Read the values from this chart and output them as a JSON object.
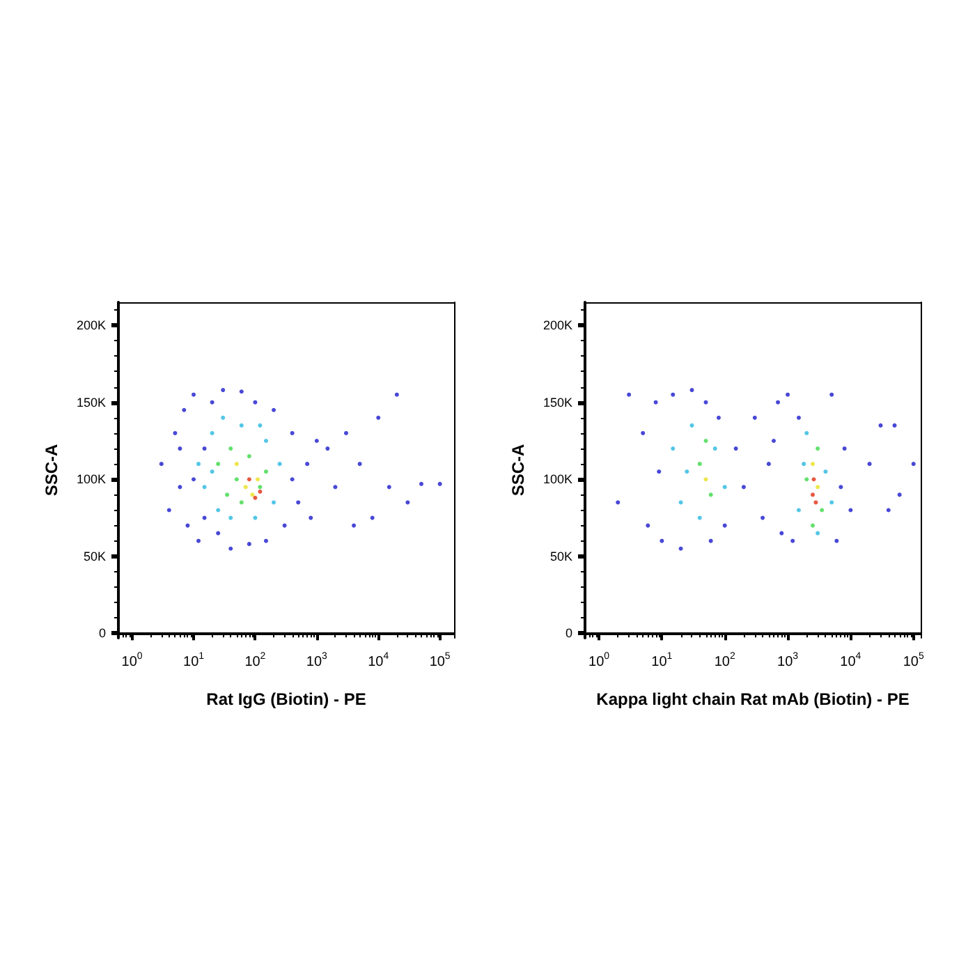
{
  "chart_data": [
    {
      "type": "scatter",
      "xlabel": "Rat IgG (Biotin) - PE",
      "ylabel": "SSC-A",
      "log": "x",
      "grid": false,
      "marker": "circle",
      "xlim": [
        0.6,
        170000
      ],
      "ylim": [
        -3000,
        215000
      ],
      "xticks": [
        {
          "value": 1,
          "label": "10$^{0}$"
        },
        {
          "value": 10,
          "label": "10$^{1}$"
        },
        {
          "value": 100,
          "label": "10$^{2}$"
        },
        {
          "value": 1000,
          "label": "10$^{3}$"
        },
        {
          "value": 10000,
          "label": "10$^{4}$"
        },
        {
          "value": 100000,
          "label": "10$^{5}$"
        }
      ],
      "yticks": [
        0,
        {
          "value": 50000,
          "label": "50K"
        },
        {
          "value": 100000,
          "label": "100K"
        },
        {
          "value": 150000,
          "label": "150K"
        },
        {
          "value": 200000,
          "label": "200K"
        }
      ],
      "x": [
        3,
        4,
        5,
        6,
        7,
        8,
        10,
        12,
        15,
        20,
        25,
        30,
        40,
        60,
        80,
        100,
        150,
        200,
        300,
        400,
        500,
        700,
        800,
        1000,
        10,
        6,
        15,
        400,
        12,
        15,
        20,
        25,
        30,
        40,
        60,
        100,
        150,
        200,
        250,
        20,
        120,
        25,
        35,
        40,
        60,
        80,
        120,
        150,
        50,
        50,
        90,
        110,
        70,
        80,
        100,
        120,
        2000,
        3000,
        5000,
        8000,
        10000,
        15000,
        20000,
        30000,
        50000,
        100000,
        4000,
        1500
      ],
      "values": [
        110000,
        80000,
        130000,
        95000,
        145000,
        70000,
        155000,
        60000,
        120000,
        150000,
        65000,
        158000,
        55000,
        157000,
        58000,
        150000,
        60000,
        145000,
        70000,
        130000,
        85000,
        110000,
        75000,
        125000,
        100000,
        120000,
        75000,
        100000,
        110000,
        95000,
        130000,
        80000,
        140000,
        75000,
        135000,
        75000,
        125000,
        85000,
        110000,
        105000,
        135000,
        110000,
        90000,
        120000,
        85000,
        115000,
        95000,
        105000,
        100000,
        110000,
        90000,
        100000,
        95000,
        100000,
        88000,
        92000,
        95000,
        130000,
        110000,
        75000,
        140000,
        95000,
        155000,
        85000,
        97000,
        97000,
        70000,
        120000
      ],
      "colors": [
        "#1a1acc",
        "#1a1acc",
        "#1a1acc",
        "#1a1acc",
        "#1a1acc",
        "#1a1acc",
        "#1a1acc",
        "#1a1acc",
        "#1a1acc",
        "#1a1acc",
        "#1a1acc",
        "#1a1acc",
        "#1a1acc",
        "#1a1acc",
        "#1a1acc",
        "#1a1acc",
        "#1a1acc",
        "#1a1acc",
        "#1a1acc",
        "#1a1acc",
        "#1a1acc",
        "#1a1acc",
        "#1a1acc",
        "#1a1acc",
        "#1a1acc",
        "#1a1acc",
        "#1a1acc",
        "#1a1acc",
        "#28b8e0",
        "#28b8e0",
        "#28b8e0",
        "#28b8e0",
        "#28b8e0",
        "#28b8e0",
        "#28b8e0",
        "#28b8e0",
        "#28b8e0",
        "#28b8e0",
        "#28b8e0",
        "#28b8e0",
        "#28b8e0",
        "#3cd848",
        "#3cd848",
        "#3cd848",
        "#3cd848",
        "#3cd848",
        "#3cd848",
        "#3cd848",
        "#3cd848",
        "#e8e020",
        "#e8e020",
        "#e8e020",
        "#e8e020",
        "#e03010",
        "#e03010",
        "#e03010",
        "#1a1acc",
        "#1a1acc",
        "#1a1acc",
        "#1a1acc",
        "#1a1acc",
        "#1a1acc",
        "#1a1acc",
        "#1a1acc",
        "#1a1acc",
        "#1a1acc",
        "#1a1acc",
        "#1a1acc"
      ]
    },
    {
      "type": "scatter",
      "xlabel": "Kappa light chain Rat mAb (Biotin) - PE",
      "ylabel": "SSC-A",
      "log": "x",
      "grid": false,
      "marker": "circle",
      "xlim": [
        0.6,
        130000
      ],
      "ylim": [
        -3000,
        215000
      ],
      "xticks": [
        {
          "value": 1,
          "label": "10$^{0}$"
        },
        {
          "value": 10,
          "label": "10$^{1}$"
        },
        {
          "value": 100,
          "label": "10$^{2}$"
        },
        {
          "value": 1000,
          "label": "10$^{3}$"
        },
        {
          "value": 10000,
          "label": "10$^{4}$"
        },
        {
          "value": 100000,
          "label": "10$^{5}$"
        }
      ],
      "yticks": [
        0,
        {
          "value": 50000,
          "label": "50K"
        },
        {
          "value": 100000,
          "label": "100K"
        },
        {
          "value": 150000,
          "label": "150K"
        },
        {
          "value": 200000,
          "label": "200K"
        }
      ],
      "x": [
        2,
        3,
        5,
        6,
        8,
        10,
        15,
        30,
        50,
        80,
        100,
        150,
        20,
        60,
        200,
        300,
        400,
        500,
        700,
        800,
        1000,
        1200,
        5000,
        6000,
        8000,
        10000,
        7000,
        1500,
        600,
        9,
        15,
        20,
        30,
        40,
        70,
        100,
        25,
        2000,
        1500,
        4000,
        3000,
        1800,
        5000,
        40,
        60,
        50,
        2000,
        3000,
        3500,
        2500,
        50,
        2500,
        3000,
        2500,
        2800,
        2600,
        20000,
        30000,
        40000,
        50000,
        100000,
        60000
      ],
      "values": [
        85000,
        155000,
        130000,
        70000,
        150000,
        60000,
        155000,
        158000,
        150000,
        140000,
        70000,
        120000,
        55000,
        60000,
        95000,
        140000,
        75000,
        110000,
        150000,
        65000,
        155000,
        60000,
        155000,
        60000,
        120000,
        80000,
        95000,
        140000,
        125000,
        105000,
        120000,
        85000,
        135000,
        75000,
        120000,
        95000,
        105000,
        130000,
        80000,
        105000,
        65000,
        110000,
        85000,
        110000,
        90000,
        125000,
        100000,
        120000,
        80000,
        70000,
        100000,
        110000,
        95000,
        90000,
        85000,
        100000,
        110000,
        135000,
        80000,
        135000,
        110000,
        90000
      ],
      "colors": [
        "#1a1acc",
        "#1a1acc",
        "#1a1acc",
        "#1a1acc",
        "#1a1acc",
        "#1a1acc",
        "#1a1acc",
        "#1a1acc",
        "#1a1acc",
        "#1a1acc",
        "#1a1acc",
        "#1a1acc",
        "#1a1acc",
        "#1a1acc",
        "#1a1acc",
        "#1a1acc",
        "#1a1acc",
        "#1a1acc",
        "#1a1acc",
        "#1a1acc",
        "#1a1acc",
        "#1a1acc",
        "#1a1acc",
        "#1a1acc",
        "#1a1acc",
        "#1a1acc",
        "#1a1acc",
        "#1a1acc",
        "#1a1acc",
        "#1a1acc",
        "#28b8e0",
        "#28b8e0",
        "#28b8e0",
        "#28b8e0",
        "#28b8e0",
        "#28b8e0",
        "#28b8e0",
        "#28b8e0",
        "#28b8e0",
        "#28b8e0",
        "#28b8e0",
        "#28b8e0",
        "#28b8e0",
        "#3cd848",
        "#3cd848",
        "#3cd848",
        "#3cd848",
        "#3cd848",
        "#3cd848",
        "#3cd848",
        "#e8e020",
        "#e8e020",
        "#e8e020",
        "#e03010",
        "#e03010",
        "#e03010",
        "#1a1acc",
        "#1a1acc",
        "#1a1acc",
        "#1a1acc",
        "#1a1acc",
        "#1a1acc"
      ]
    }
  ]
}
